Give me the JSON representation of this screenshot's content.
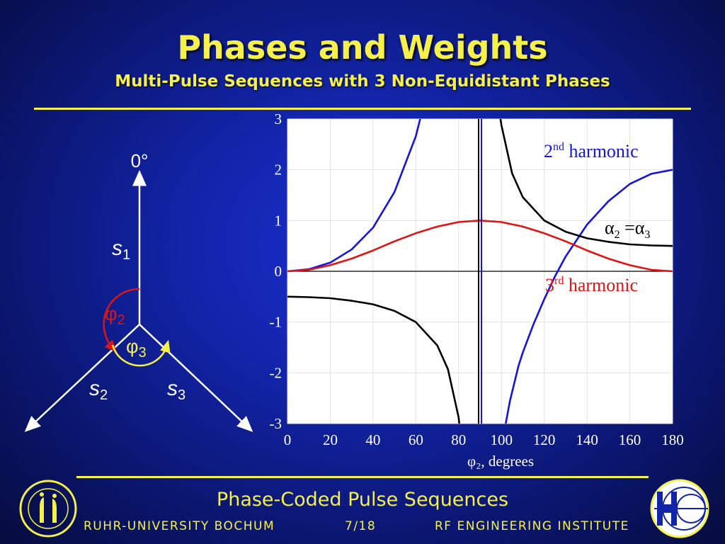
{
  "slide": {
    "title": "Phases and Weights",
    "subtitle": "Multi-Pulse Sequences with 3 Non-Equidistant Phases",
    "page": "7/18"
  },
  "footer": {
    "title": "Phase-Coded Pulse Sequences",
    "left": "RUHR-UNIVERSITY BOCHUM",
    "right": "RF ENGINEERING INSTITUTE"
  },
  "diagram": {
    "top_label": "0°",
    "s1": "s",
    "s1_sub": "1",
    "s2": "s",
    "s2_sub": "2",
    "s3": "s",
    "s3_sub": "3",
    "phi2": "φ",
    "phi2_sub": "2",
    "phi3": "φ",
    "phi3_sub": "3"
  },
  "colors": {
    "accent": "#f6f04a",
    "second_harmonic": "#1414e0",
    "third_harmonic": "#e01414",
    "alpha": "#000000"
  },
  "chart_data": {
    "type": "line",
    "xlabel": "φ₂, degrees",
    "xlim": [
      0,
      180
    ],
    "ylim": [
      -3,
      3
    ],
    "xticks": [
      0,
      20,
      40,
      60,
      80,
      100,
      120,
      140,
      160,
      180
    ],
    "yticks": [
      3,
      2,
      1,
      0,
      -1,
      -2,
      -3
    ],
    "asymptote_x": 90,
    "series": [
      {
        "name": "2nd harmonic",
        "color": "#1414e0",
        "segments": [
          {
            "x": [
              0,
              10,
              20,
              30,
              40,
              50,
              60,
              65,
              67
            ],
            "y": [
              0,
              0.04,
              0.17,
              0.43,
              0.86,
              1.56,
              2.66,
              3.5,
              3.9
            ]
          },
          {
            "x": [
              101,
              102,
              104,
              108,
              110,
              115,
              120,
              125,
              130,
              140,
              150,
              160,
              170,
              180
            ],
            "y": [
              -3.2,
              -3.0,
              -2.55,
              -1.86,
              -1.6,
              -1.04,
              -0.55,
              -0.1,
              0.29,
              0.92,
              1.38,
              1.72,
              1.92,
              2.0
            ]
          }
        ]
      },
      {
        "name": "3rd harmonic",
        "color": "#e01414",
        "segments": [
          {
            "x": [
              0,
              10,
              20,
              30,
              40,
              50,
              60,
              70,
              80,
              90,
              100,
              110,
              120,
              130,
              140,
              150,
              160,
              170,
              180
            ],
            "y": [
              0,
              0.03,
              0.12,
              0.25,
              0.41,
              0.59,
              0.75,
              0.88,
              0.97,
              1.0,
              0.97,
              0.88,
              0.75,
              0.59,
              0.41,
              0.25,
              0.12,
              0.03,
              0
            ]
          }
        ]
      },
      {
        "name": "α2 = α3",
        "color": "#000000",
        "segments": [
          {
            "x": [
              0,
              10,
              20,
              30,
              40,
              50,
              60,
              70,
              75,
              80,
              83,
              84
            ],
            "y": [
              -0.5,
              -0.51,
              -0.53,
              -0.58,
              -0.65,
              -0.78,
              -1.0,
              -1.46,
              -1.93,
              -2.88,
              -4.1,
              -4.8
            ]
          },
          {
            "x": [
              97,
              98,
              100,
              105,
              110,
              120,
              130,
              140,
              150,
              160,
              170,
              180
            ],
            "y": [
              3.9,
              3.45,
              2.88,
              1.93,
              1.46,
              1.0,
              0.78,
              0.65,
              0.58,
              0.53,
              0.51,
              0.5
            ]
          }
        ]
      }
    ],
    "annotations": {
      "second": {
        "base": "2",
        "sup": "nd",
        "text": " harmonic"
      },
      "third": {
        "base": "3",
        "sup": "rd",
        "text": " harmonic"
      },
      "alpha": {
        "a": "α",
        "sub1": "2",
        "eq": " =",
        "b": "α",
        "sub2": "3"
      }
    }
  }
}
